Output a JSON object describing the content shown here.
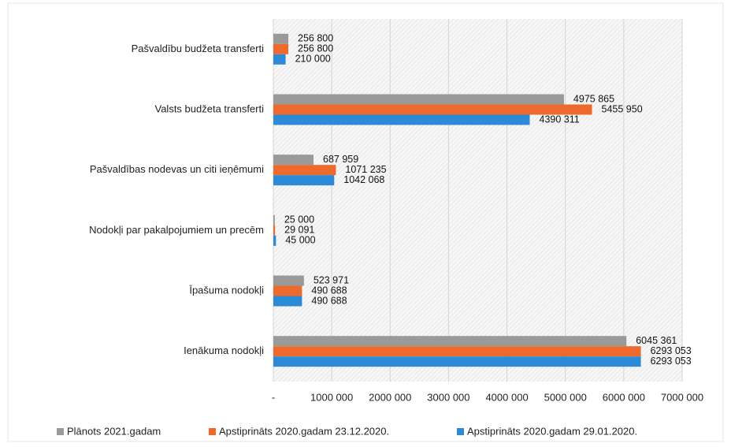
{
  "chart_data": {
    "type": "bar",
    "orientation": "horizontal",
    "categories": [
      "Pašvaldību budžeta transferti",
      "Valsts budžeta transferti",
      "Pašvaldības nodevas un citi ieņēmumi",
      "Nodokļi par pakalpojumiem un precēm",
      "Īpašuma nodokļi",
      "Ienākuma nodokļi"
    ],
    "series": [
      {
        "name": "Plānots 2021.gadam",
        "color": "#9a9a9a",
        "values": [
          256800,
          4975865,
          687959,
          25000,
          523971,
          6045361
        ],
        "value_labels": [
          "256 800",
          "4975 865",
          "687 959",
          "25 000",
          "523 971",
          "6045 361"
        ]
      },
      {
        "name": "Apstiprināts 2020.gadam 23.12.2020.",
        "color": "#ed6a2c",
        "values": [
          256800,
          5455950,
          1071235,
          29091,
          490688,
          6293053
        ],
        "value_labels": [
          "256 800",
          "5455 950",
          "1071 235",
          "29 091",
          "490 688",
          "6293 053"
        ]
      },
      {
        "name": "Apstiprināts 2020.gadam 29.01.2020.",
        "color": "#2d8ad6",
        "values": [
          210000,
          4390311,
          1042068,
          45000,
          490688,
          6293053
        ],
        "value_labels": [
          "210 000",
          "4390 311",
          "1042 068",
          "45 000",
          "490 688",
          "6293 053"
        ]
      }
    ],
    "xlim": [
      0,
      7000000
    ],
    "xticks": [
      {
        "value": 0,
        "label": "-"
      },
      {
        "value": 1000000,
        "label": "1000 000"
      },
      {
        "value": 2000000,
        "label": "2000 000"
      },
      {
        "value": 3000000,
        "label": "3000 000"
      },
      {
        "value": 4000000,
        "label": "4000 000"
      },
      {
        "value": 5000000,
        "label": "5000 000"
      },
      {
        "value": 6000000,
        "label": "6000 000"
      },
      {
        "value": 7000000,
        "label": "7000 000"
      }
    ],
    "grid": true,
    "legend": "bottom"
  }
}
